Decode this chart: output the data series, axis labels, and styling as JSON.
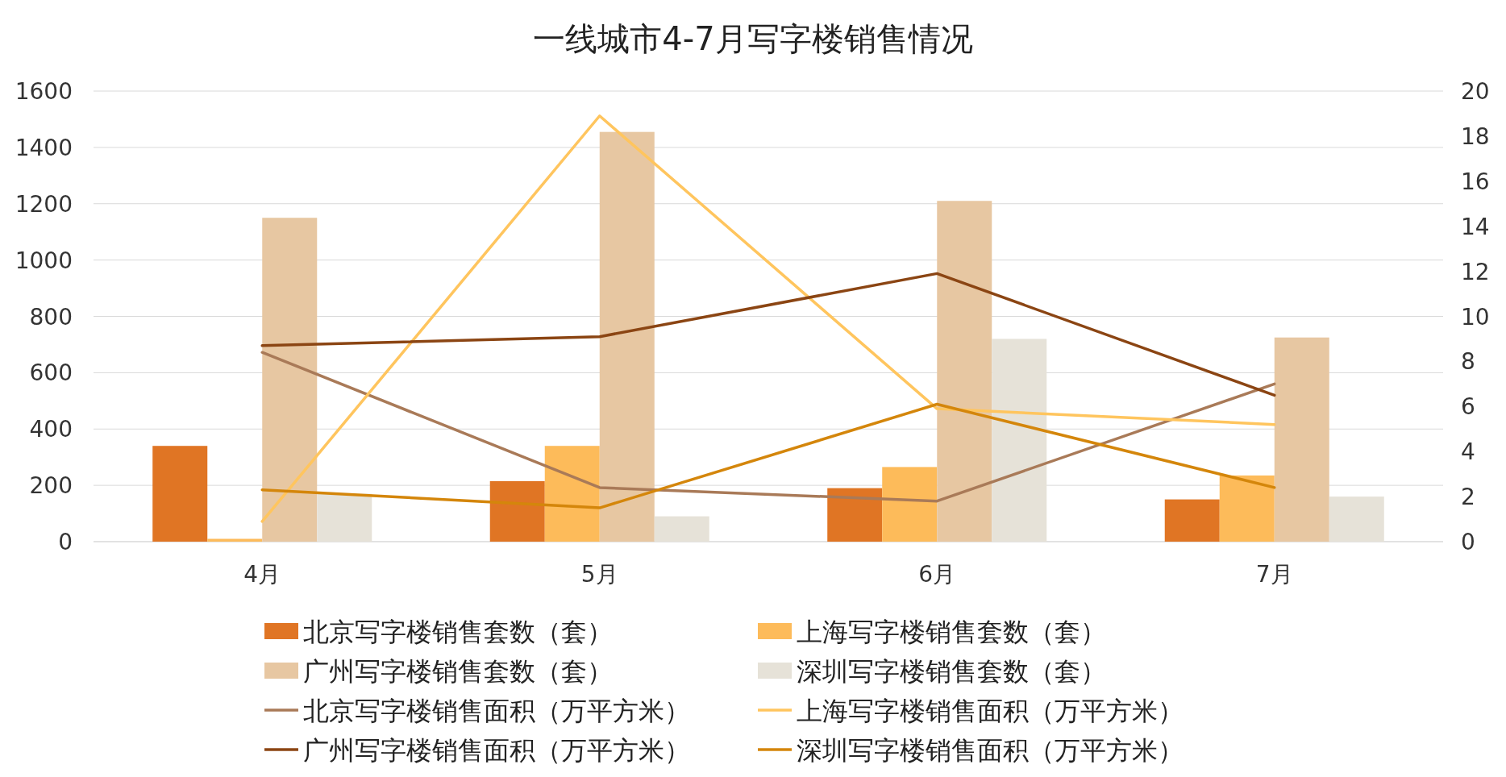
{
  "chart_data": {
    "type": "bar",
    "title": "一线城市4-7月写字楼销售情况",
    "categories": [
      "4月",
      "5月",
      "6月",
      "7月"
    ],
    "ylim": [
      0,
      1600
    ],
    "yticks": [
      0,
      200,
      400,
      600,
      800,
      1000,
      1200,
      1400,
      1600
    ],
    "y2lim": [
      0,
      20
    ],
    "y2ticks": [
      0,
      2,
      4,
      6,
      8,
      10,
      12,
      14,
      16,
      18,
      20
    ],
    "grid": "y",
    "legend": "bottom",
    "series": [
      {
        "name": "北京写字楼销售套数（套）",
        "color": "#e07524",
        "values": [
          340,
          215,
          190,
          150
        ]
      },
      {
        "name": "上海写字楼销售套数（套）",
        "color": "#fdbb5a",
        "values": [
          10,
          340,
          265,
          235
        ]
      },
      {
        "name": "广州写字楼销售套数（套）",
        "color": "#e7c7a2",
        "values": [
          1150,
          1455,
          1210,
          725
        ]
      },
      {
        "name": "深圳写字楼销售套数（套）",
        "color": "#e6e2d8",
        "values": [
          170,
          90,
          720,
          160
        ]
      },
      {
        "name": "北京写字楼销售面积（万平方米）",
        "type": "line",
        "axis": "y2",
        "color": "#a97a58",
        "values": [
          8.4,
          2.4,
          1.8,
          7.0
        ]
      },
      {
        "name": "上海写字楼销售面积（万平方米）",
        "type": "line",
        "axis": "y2",
        "color": "#ffc55e",
        "values": [
          0.9,
          18.9,
          5.9,
          5.2
        ]
      },
      {
        "name": "广州写字楼销售面积（万平方米）",
        "type": "line",
        "axis": "y2",
        "color": "#8b4513",
        "values": [
          8.7,
          9.1,
          11.9,
          6.5
        ]
      },
      {
        "name": "深圳写字楼销售面积（万平方米）",
        "type": "line",
        "axis": "y2",
        "color": "#d4860b",
        "values": [
          2.3,
          1.5,
          6.1,
          2.4
        ]
      }
    ]
  }
}
